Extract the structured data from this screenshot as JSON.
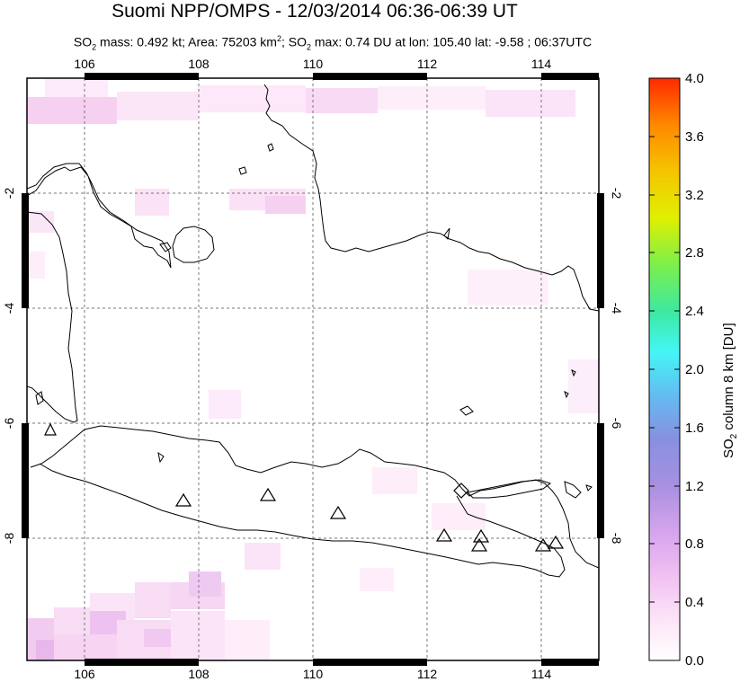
{
  "header": {
    "title": "Suomi NPP/OMPS - 12/03/2014 06:36-06:39 UT",
    "subtitle": {
      "so2_mass_label": "SO",
      "so2_mass_text": " mass: 0.492 kt; Area: 75203 km",
      "area_text": "; SO",
      "so2_max_text": " max: 0.74 DU at lon: 105.40 lat: -9.58 ; 06:37UTC"
    }
  },
  "map": {
    "lon_range": [
      105,
      115
    ],
    "lat_range": [
      -10,
      0
    ],
    "x_ticks": [
      "106",
      "108",
      "110",
      "112",
      "114"
    ],
    "y_ticks": [
      "-2",
      "-4",
      "-6",
      "-8"
    ],
    "volcano_marker": "triangle-icon"
  },
  "colorbar": {
    "title_prefix": "SO",
    "title_suffix": " column 8 km [DU]",
    "ticks": [
      "4.0",
      "3.6",
      "3.2",
      "2.8",
      "2.4",
      "2.0",
      "1.6",
      "1.2",
      "0.8",
      "0.4",
      "0.0"
    ],
    "range": [
      0,
      4
    ],
    "colors": [
      "#ff2a00",
      "#ff8800",
      "#f5c400",
      "#e0f000",
      "#7cf04a",
      "#3ee8a0",
      "#44f6f6",
      "#66b8f0",
      "#8890e0",
      "#a890e0",
      "#d6a4ee",
      "#f2c2f2",
      "#fde4f8",
      "#ffffff"
    ]
  }
}
